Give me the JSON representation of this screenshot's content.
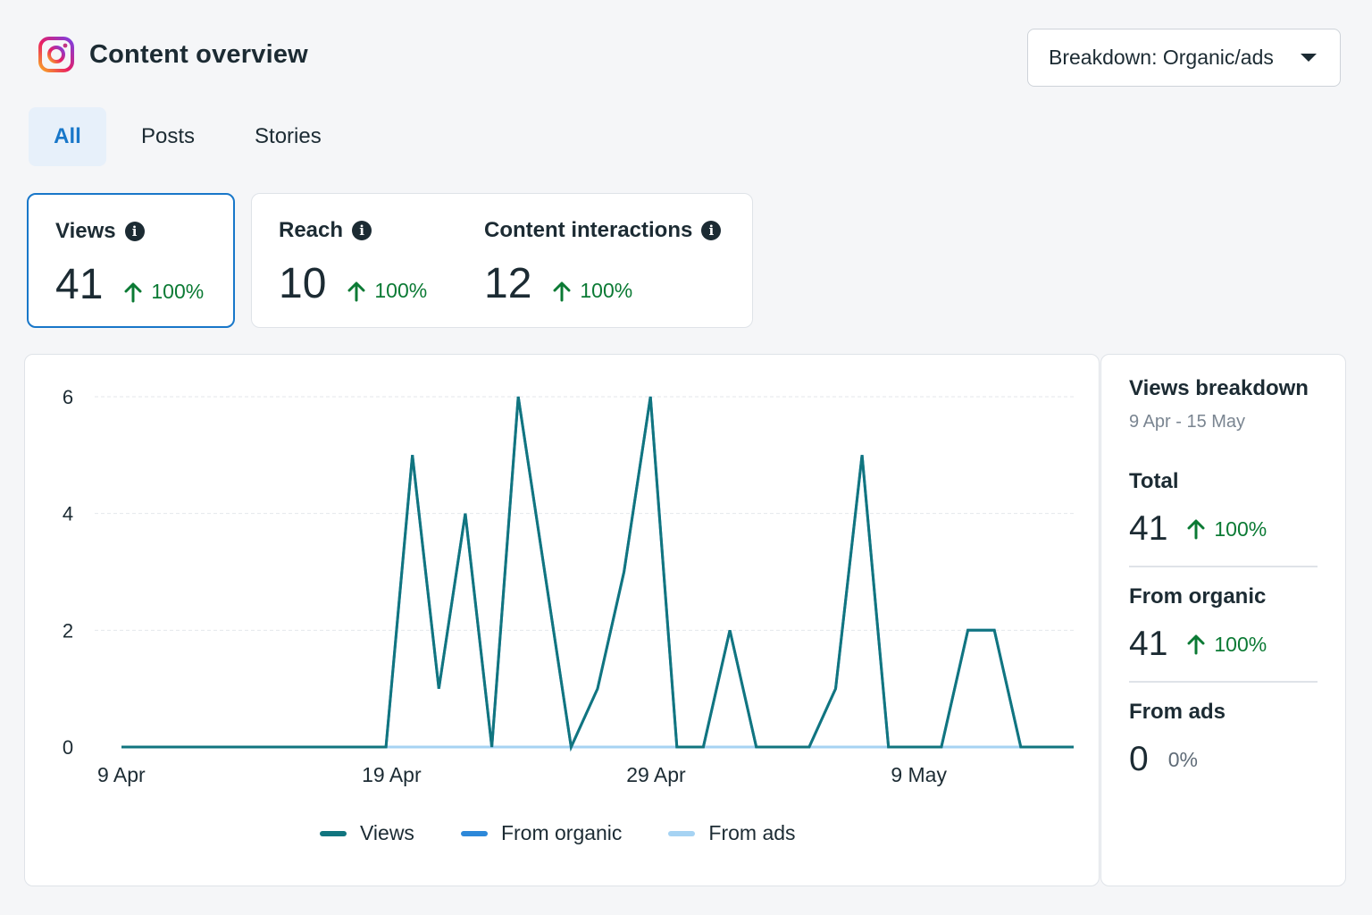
{
  "header": {
    "title": "Content overview",
    "logo_icon": "instagram-icon"
  },
  "breakdown": {
    "label": "Breakdown: Organic/ads"
  },
  "tabs": [
    {
      "label": "All",
      "active": true
    },
    {
      "label": "Posts",
      "active": false
    },
    {
      "label": "Stories",
      "active": false
    }
  ],
  "metrics": [
    {
      "label": "Views",
      "value": "41",
      "change": "100%",
      "selected": true
    },
    {
      "label": "Reach",
      "value": "10",
      "change": "100%",
      "selected": false
    },
    {
      "label": "Content interactions",
      "value": "12",
      "change": "100%",
      "selected": false
    }
  ],
  "side": {
    "title": "Views breakdown",
    "range": "9 Apr - 15 May",
    "items": [
      {
        "label": "Total",
        "value": "41",
        "change": "100%",
        "trend": "up"
      },
      {
        "label": "From organic",
        "value": "41",
        "change": "100%",
        "trend": "up"
      },
      {
        "label": "From ads",
        "value": "0",
        "change": "0%",
        "trend": "none"
      }
    ]
  },
  "colors": {
    "views": "#11757f",
    "organic": "#2d88d9",
    "ads": "#a6d3f3",
    "accent": "#1877c9",
    "positive": "#0b7a34"
  },
  "chart_data": {
    "type": "line",
    "x_tick_labels": [
      "9 Apr",
      "19 Apr",
      "29 Apr",
      "9 May"
    ],
    "x_start": "9 Apr",
    "x_end": "15 May",
    "ylim": [
      0,
      6
    ],
    "y_ticks": [
      0,
      2,
      4,
      6
    ],
    "grid": true,
    "legend_position": "bottom",
    "series": [
      {
        "name": "Views",
        "x": [
          "9 Apr",
          "10 Apr",
          "11 Apr",
          "12 Apr",
          "13 Apr",
          "14 Apr",
          "15 Apr",
          "16 Apr",
          "17 Apr",
          "18 Apr",
          "19 Apr",
          "20 Apr",
          "21 Apr",
          "22 Apr",
          "23 Apr",
          "24 Apr",
          "25 Apr",
          "26 Apr",
          "27 Apr",
          "28 Apr",
          "29 Apr",
          "30 Apr",
          "1 May",
          "2 May",
          "3 May",
          "4 May",
          "5 May",
          "6 May",
          "7 May",
          "8 May",
          "9 May",
          "10 May",
          "11 May",
          "12 May",
          "13 May",
          "14 May",
          "15 May"
        ],
        "values": [
          0,
          0,
          0,
          0,
          0,
          0,
          0,
          0,
          0,
          0,
          0,
          5,
          1,
          4,
          0,
          6,
          3,
          0,
          1,
          3,
          6,
          0,
          0,
          2,
          0,
          0,
          0,
          1,
          5,
          0,
          0,
          0,
          2,
          2,
          0,
          0,
          0
        ]
      },
      {
        "name": "From organic",
        "x": [
          "9 Apr",
          "10 Apr",
          "11 Apr",
          "12 Apr",
          "13 Apr",
          "14 Apr",
          "15 Apr",
          "16 Apr",
          "17 Apr",
          "18 Apr",
          "19 Apr",
          "20 Apr",
          "21 Apr",
          "22 Apr",
          "23 Apr",
          "24 Apr",
          "25 Apr",
          "26 Apr",
          "27 Apr",
          "28 Apr",
          "29 Apr",
          "30 Apr",
          "1 May",
          "2 May",
          "3 May",
          "4 May",
          "5 May",
          "6 May",
          "7 May",
          "8 May",
          "9 May",
          "10 May",
          "11 May",
          "12 May",
          "13 May",
          "14 May",
          "15 May"
        ],
        "values": [
          0,
          0,
          0,
          0,
          0,
          0,
          0,
          0,
          0,
          0,
          0,
          5,
          1,
          4,
          0,
          6,
          3,
          0,
          1,
          3,
          6,
          0,
          0,
          2,
          0,
          0,
          0,
          1,
          5,
          0,
          0,
          0,
          2,
          2,
          0,
          0,
          0
        ]
      },
      {
        "name": "From ads",
        "x": [
          "9 Apr",
          "10 Apr",
          "11 Apr",
          "12 Apr",
          "13 Apr",
          "14 Apr",
          "15 Apr",
          "16 Apr",
          "17 Apr",
          "18 Apr",
          "19 Apr",
          "20 Apr",
          "21 Apr",
          "22 Apr",
          "23 Apr",
          "24 Apr",
          "25 Apr",
          "26 Apr",
          "27 Apr",
          "28 Apr",
          "29 Apr",
          "30 Apr",
          "1 May",
          "2 May",
          "3 May",
          "4 May",
          "5 May",
          "6 May",
          "7 May",
          "8 May",
          "9 May",
          "10 May",
          "11 May",
          "12 May",
          "13 May",
          "14 May",
          "15 May"
        ],
        "values": [
          0,
          0,
          0,
          0,
          0,
          0,
          0,
          0,
          0,
          0,
          0,
          0,
          0,
          0,
          0,
          0,
          0,
          0,
          0,
          0,
          0,
          0,
          0,
          0,
          0,
          0,
          0,
          0,
          0,
          0,
          0,
          0,
          0,
          0,
          0,
          0,
          0
        ]
      }
    ]
  }
}
